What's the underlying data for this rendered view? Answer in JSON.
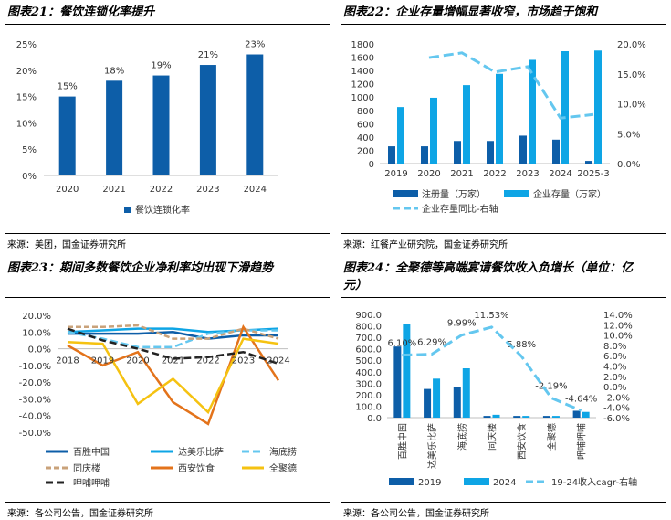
{
  "colors": {
    "dark_blue": "#0d5ea8",
    "blue": "#0ea5e5",
    "light_blue": "#64c7ef",
    "tan": "#c9a27a",
    "orange": "#e3731b",
    "yellow": "#f5c211",
    "black": "#222222"
  },
  "panels": [
    {
      "title": "图表21：餐饮连锁化率提升",
      "source": "来源：美团，国金证券研究所"
    },
    {
      "title": "图表22：企业存量增幅显著收窄，市场趋于饱和",
      "source": "来源：红餐产业研究院，国金证券研究所"
    },
    {
      "title": "图表23：期间多数餐饮企业净利率均出现下滑趋势",
      "source": "来源：各公司公告，国金证券研究所"
    },
    {
      "title": "图表24：全聚德等高端宴请餐饮收入负增长（单位：亿元）",
      "title_line1": "图表24：全聚德等高端宴请餐饮收入负增长（单位：亿",
      "title_line2": "元）",
      "source": "来源：各公司公告，国金证券研究所"
    }
  ],
  "chart_data": [
    {
      "type": "bar",
      "title": "餐饮连锁化率提升",
      "categories": [
        "2020",
        "2021",
        "2022",
        "2023",
        "2024"
      ],
      "series": [
        {
          "name": "餐饮连锁化率",
          "values": [
            15,
            18,
            19,
            21,
            23
          ]
        }
      ],
      "data_labels": [
        "15%",
        "18%",
        "19%",
        "21%",
        "23%"
      ],
      "ylim": [
        0,
        25
      ],
      "yticks": [
        "0%",
        "5%",
        "10%",
        "15%",
        "20%",
        "25%"
      ],
      "legend": "bottom"
    },
    {
      "type": "bar",
      "title": "企业存量增幅显著收窄，市场趋于饱和",
      "categories": [
        "2019",
        "2020",
        "2021",
        "2022",
        "2023",
        "2024",
        "2025-3"
      ],
      "series": [
        {
          "name": "注册量（万家）",
          "values": [
            260,
            260,
            340,
            340,
            420,
            360,
            40
          ]
        },
        {
          "name": "企业存量（万家）",
          "values": [
            850,
            990,
            1180,
            1350,
            1560,
            1690,
            1700
          ]
        },
        {
          "name": "企业存量同比-右轴",
          "axis": "right",
          "values": [
            null,
            17.7,
            18.5,
            15.3,
            16.2,
            7.6,
            8.2
          ]
        }
      ],
      "ylim": [
        0,
        1800
      ],
      "yticks": [
        "0",
        "200",
        "400",
        "600",
        "800",
        "1000",
        "1200",
        "1400",
        "1600",
        "1800"
      ],
      "y2lim": [
        0,
        20
      ],
      "y2ticks": [
        "0.0%",
        "5.0%",
        "10.0%",
        "15.0%",
        "20.0%"
      ],
      "legend": "bottom"
    },
    {
      "type": "line",
      "title": "期间多数餐饮企业净利率均出现下滑趋势",
      "x": [
        "2018",
        "2019",
        "2020",
        "2021",
        "2022",
        "2023",
        "2024"
      ],
      "series": [
        {
          "name": "百胜中国",
          "values": [
            9,
            9,
            9,
            10,
            6,
            8,
            8
          ]
        },
        {
          "name": "达美乐比萨",
          "values": [
            10,
            11,
            12,
            12,
            10,
            11,
            12
          ]
        },
        {
          "name": "海底捞",
          "values": [
            10,
            6,
            1,
            1,
            9,
            11,
            11
          ]
        },
        {
          "name": "同庆楼",
          "values": [
            13,
            13,
            14,
            6,
            6,
            12,
            6
          ]
        },
        {
          "name": "西安饮食",
          "values": [
            2,
            -10,
            -2,
            -32,
            -45,
            13,
            -19
          ]
        },
        {
          "name": "全聚德",
          "values": [
            4,
            3,
            -33,
            -18,
            -38,
            6,
            3
          ]
        },
        {
          "name": "呷哺呷哺",
          "values": [
            12,
            5,
            0,
            -6,
            -5,
            -2,
            -9
          ]
        }
      ],
      "ylim": [
        -50,
        20
      ],
      "yticks": [
        "20.0%",
        "10.0%",
        "0.0%",
        "-10.0%",
        "-20.0%",
        "-30.0%",
        "-40.0%",
        "-50.0%"
      ],
      "legend": "bottom"
    },
    {
      "type": "bar",
      "title": "全聚德等高端宴请餐饮收入负增长（单位：亿元）",
      "categories": [
        "百胜中国",
        "达美乐比萨",
        "海底捞",
        "同庆楼",
        "西安饮食",
        "全聚德",
        "呷哺呷哺"
      ],
      "series": [
        {
          "name": "2019",
          "values": [
            620,
            250,
            265,
            15,
            15,
            15,
            60
          ]
        },
        {
          "name": "2024",
          "values": [
            820,
            340,
            430,
            25,
            15,
            15,
            50
          ]
        },
        {
          "name": "19-24收入cagr-右轴",
          "axis": "right",
          "values": [
            6.1,
            6.29,
            9.99,
            11.53,
            5.88,
            -2.19,
            -4.64
          ]
        }
      ],
      "data_labels": [
        "6.10%",
        "6.29%",
        "9.99%",
        "11.53%",
        "5.88%",
        "-2.19%",
        "-4.64%"
      ],
      "ylim": [
        0,
        900
      ],
      "yticks": [
        "0.0",
        "100.0",
        "200.0",
        "300.0",
        "400.0",
        "500.0",
        "600.0",
        "700.0",
        "800.0",
        "900.0"
      ],
      "y2lim": [
        -6,
        14
      ],
      "y2ticks": [
        "14.0%",
        "12.0%",
        "10.0%",
        "8.0%",
        "6.0%",
        "4.0%",
        "2.0%",
        "0.0%",
        "-2.0%",
        "-4.0%",
        "-6.0%"
      ],
      "legend": "bottom"
    }
  ]
}
